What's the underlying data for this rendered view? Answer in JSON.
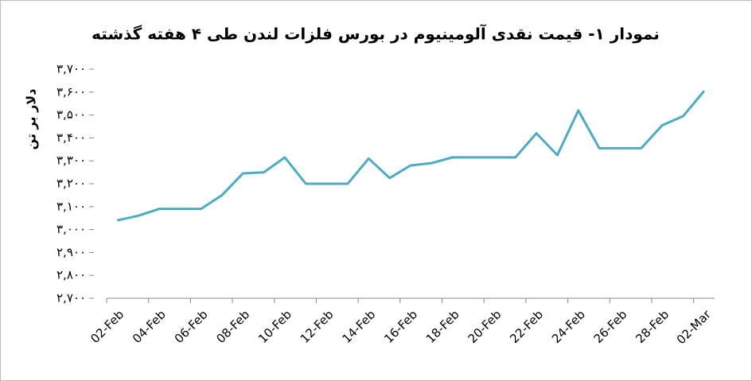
{
  "chart_data": {
    "type": "line",
    "title": "نمودار ۱- قیمت نقدی آلومینیوم در بورس فلزات لندن طی ۴ هفته گذشته",
    "y_label": "دلار بر تن",
    "categories": [
      "02-Feb",
      null,
      "04-Feb",
      null,
      "06-Feb",
      null,
      "08-Feb",
      null,
      "10-Feb",
      null,
      "12-Feb",
      null,
      "14-Feb",
      null,
      "16-Feb",
      null,
      "18-Feb",
      null,
      "20-Feb",
      null,
      "22-Feb",
      null,
      "24-Feb",
      null,
      "26-Feb",
      null,
      "28-Feb",
      null,
      "02-Mar"
    ],
    "series": [
      {
        "color": "#4bacc6",
        "values": [
          3040,
          3060,
          3090,
          3090,
          3090,
          3150,
          3245,
          3250,
          3315,
          3200,
          3200,
          3200,
          3310,
          3225,
          3280,
          3290,
          3315,
          3315,
          3315,
          3315,
          3420,
          3325,
          3520,
          3355,
          3355,
          3355,
          3455,
          3495,
          3605
        ]
      }
    ],
    "ylim": [
      2700,
      3700
    ],
    "yticks": [
      {
        "value": 2700,
        "label": "۲,۷۰۰"
      },
      {
        "value": 2800,
        "label": "۲,۸۰۰"
      },
      {
        "value": 2900,
        "label": "۲,۹۰۰"
      },
      {
        "value": 3000,
        "label": "۳,۰۰۰"
      },
      {
        "value": 3100,
        "label": "۳,۱۰۰"
      },
      {
        "value": 3200,
        "label": "۳,۲۰۰"
      },
      {
        "value": 3300,
        "label": "۳,۳۰۰"
      },
      {
        "value": 3400,
        "label": "۳,۴۰۰"
      },
      {
        "value": 3500,
        "label": "۳,۵۰۰"
      },
      {
        "value": 3600,
        "label": "۳,۶۰۰"
      },
      {
        "value": 3700,
        "label": "۳,۷۰۰"
      }
    ],
    "grid": false
  }
}
